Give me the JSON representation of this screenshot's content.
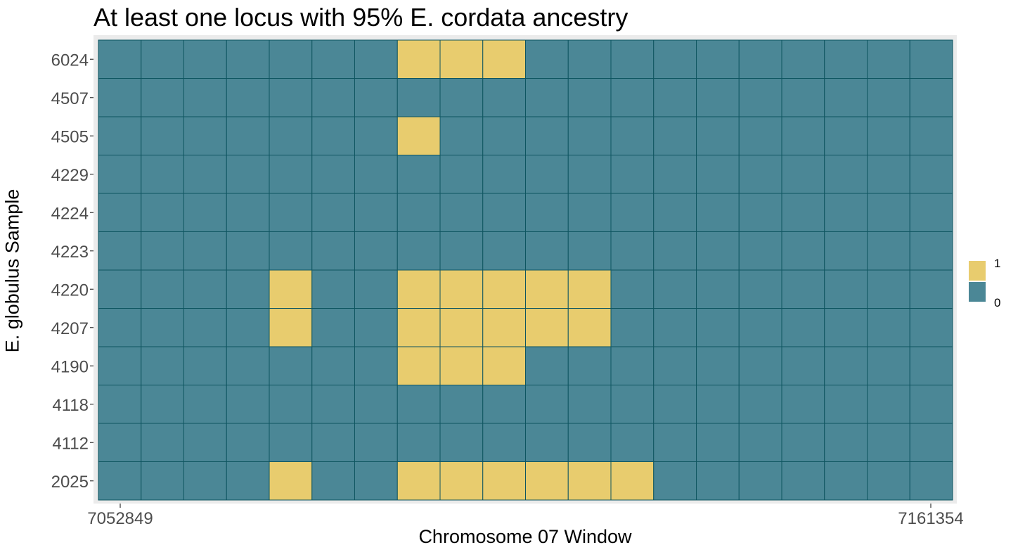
{
  "chart_data": {
    "type": "heatmap",
    "title": "At least one locus with 95% E. cordata ancestry",
    "xlabel": "Chromosome 07 Window",
    "ylabel": "E. globulus Sample",
    "x_ticks": [
      "7052849",
      "7161354"
    ],
    "n_windows": 20,
    "rows": [
      "6024",
      "4507",
      "4505",
      "4229",
      "4224",
      "4223",
      "4220",
      "4207",
      "4190",
      "4118",
      "4112",
      "2025"
    ],
    "values": [
      [
        0,
        0,
        0,
        0,
        0,
        0,
        0,
        1,
        1,
        1,
        0,
        0,
        0,
        0,
        0,
        0,
        0,
        0,
        0,
        0
      ],
      [
        0,
        0,
        0,
        0,
        0,
        0,
        0,
        0,
        0,
        0,
        0,
        0,
        0,
        0,
        0,
        0,
        0,
        0,
        0,
        0
      ],
      [
        0,
        0,
        0,
        0,
        0,
        0,
        0,
        1,
        0,
        0,
        0,
        0,
        0,
        0,
        0,
        0,
        0,
        0,
        0,
        0
      ],
      [
        0,
        0,
        0,
        0,
        0,
        0,
        0,
        0,
        0,
        0,
        0,
        0,
        0,
        0,
        0,
        0,
        0,
        0,
        0,
        0
      ],
      [
        0,
        0,
        0,
        0,
        0,
        0,
        0,
        0,
        0,
        0,
        0,
        0,
        0,
        0,
        0,
        0,
        0,
        0,
        0,
        0
      ],
      [
        0,
        0,
        0,
        0,
        0,
        0,
        0,
        0,
        0,
        0,
        0,
        0,
        0,
        0,
        0,
        0,
        0,
        0,
        0,
        0
      ],
      [
        0,
        0,
        0,
        0,
        1,
        0,
        0,
        1,
        1,
        1,
        1,
        1,
        0,
        0,
        0,
        0,
        0,
        0,
        0,
        0
      ],
      [
        0,
        0,
        0,
        0,
        1,
        0,
        0,
        1,
        1,
        1,
        1,
        1,
        0,
        0,
        0,
        0,
        0,
        0,
        0,
        0
      ],
      [
        0,
        0,
        0,
        0,
        0,
        0,
        0,
        1,
        1,
        1,
        0,
        0,
        0,
        0,
        0,
        0,
        0,
        0,
        0,
        0
      ],
      [
        0,
        0,
        0,
        0,
        0,
        0,
        0,
        0,
        0,
        0,
        0,
        0,
        0,
        0,
        0,
        0,
        0,
        0,
        0,
        0
      ],
      [
        0,
        0,
        0,
        0,
        0,
        0,
        0,
        0,
        0,
        0,
        0,
        0,
        0,
        0,
        0,
        0,
        0,
        0,
        0,
        0
      ],
      [
        0,
        0,
        0,
        0,
        1,
        0,
        0,
        1,
        1,
        1,
        1,
        1,
        1,
        0,
        0,
        0,
        0,
        0,
        0,
        0
      ]
    ],
    "legend": {
      "placement": "right",
      "entries": [
        {
          "label": "1",
          "color": "#E8CC6E"
        },
        {
          "label": "0",
          "color": "#4B8796"
        }
      ]
    },
    "colors": {
      "value_1": "#E8CC6E",
      "value_0": "#4B8796",
      "cell_border": "#0E5560",
      "panel_background": "#EBEBEB"
    }
  }
}
